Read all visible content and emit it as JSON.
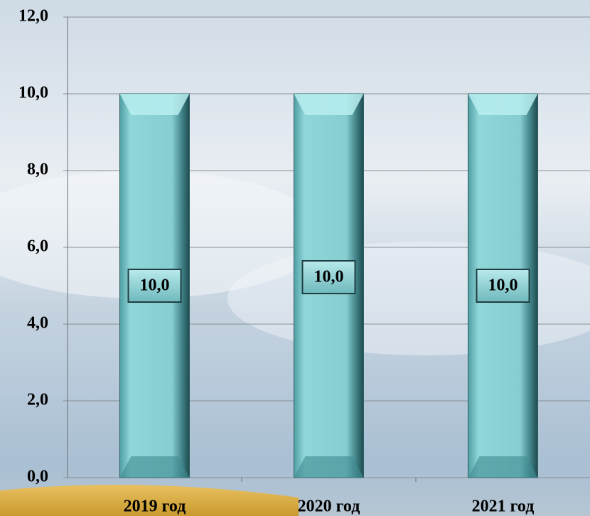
{
  "chart_data": {
    "type": "bar",
    "categories": [
      "2019 год",
      "2020 год",
      "2021 год"
    ],
    "values": [
      10,
      10,
      10
    ],
    "value_labels": [
      "10,0",
      "10,0",
      "10,0"
    ],
    "color": "#7fc8cc",
    "ylim": [
      0,
      12
    ],
    "yticks": [
      {
        "value": 0,
        "label": "0,0"
      },
      {
        "value": 2,
        "label": "2,0"
      },
      {
        "value": 4,
        "label": "4,0"
      },
      {
        "value": 6,
        "label": "6,0"
      },
      {
        "value": 8,
        "label": "8,0"
      },
      {
        "value": 10,
        "label": "10,0"
      },
      {
        "value": 12,
        "label": "12,0"
      }
    ],
    "grid": true
  }
}
